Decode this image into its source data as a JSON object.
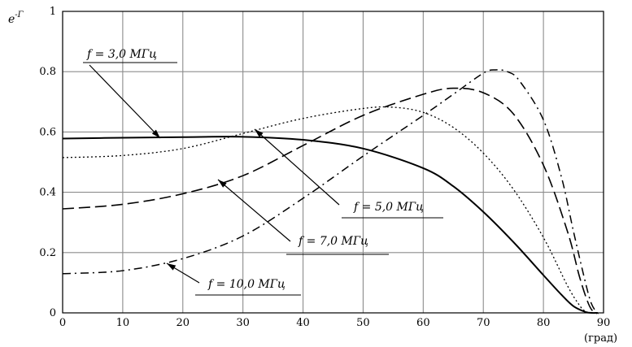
{
  "chart_data": {
    "type": "line",
    "title": "",
    "ylabel_base": "e",
    "ylabel_sup": "-Γ",
    "xlabel": "(град)",
    "xlim": [
      0,
      90
    ],
    "ylim": [
      0,
      1
    ],
    "xticks": [
      0,
      10,
      20,
      30,
      40,
      50,
      60,
      70,
      80,
      90
    ],
    "yticks": [
      0,
      0.2,
      0.4,
      0.6,
      0.8,
      1
    ],
    "grid": true,
    "series": [
      {
        "name": "f = 3,0 МГц",
        "dash": "solid",
        "points": [
          [
            0,
            0.578
          ],
          [
            10,
            0.581
          ],
          [
            20,
            0.583
          ],
          [
            30,
            0.584
          ],
          [
            40,
            0.574
          ],
          [
            50,
            0.545
          ],
          [
            60,
            0.48
          ],
          [
            65,
            0.42
          ],
          [
            70,
            0.335
          ],
          [
            75,
            0.235
          ],
          [
            80,
            0.125
          ],
          [
            83,
            0.06
          ],
          [
            85,
            0.022
          ],
          [
            87,
            0.003
          ],
          [
            88,
            0
          ],
          [
            89,
            0
          ]
        ]
      },
      {
        "name": "f = 5,0 МГц",
        "dash": "dotted",
        "points": [
          [
            0,
            0.515
          ],
          [
            10,
            0.522
          ],
          [
            20,
            0.545
          ],
          [
            30,
            0.595
          ],
          [
            40,
            0.645
          ],
          [
            50,
            0.678
          ],
          [
            55,
            0.682
          ],
          [
            60,
            0.665
          ],
          [
            65,
            0.615
          ],
          [
            70,
            0.53
          ],
          [
            75,
            0.41
          ],
          [
            80,
            0.25
          ],
          [
            84,
            0.09
          ],
          [
            86,
            0.025
          ],
          [
            87,
            0.005
          ],
          [
            88,
            0
          ],
          [
            89,
            0
          ]
        ]
      },
      {
        "name": "f = 7,0 МГц",
        "dash": "dashed",
        "points": [
          [
            0,
            0.345
          ],
          [
            10,
            0.36
          ],
          [
            20,
            0.395
          ],
          [
            30,
            0.455
          ],
          [
            40,
            0.555
          ],
          [
            50,
            0.655
          ],
          [
            60,
            0.725
          ],
          [
            65,
            0.745
          ],
          [
            70,
            0.73
          ],
          [
            75,
            0.66
          ],
          [
            80,
            0.49
          ],
          [
            84,
            0.27
          ],
          [
            86,
            0.12
          ],
          [
            87.5,
            0.03
          ],
          [
            88.5,
            0
          ],
          [
            89,
            0
          ]
        ]
      },
      {
        "name": "f = 10,0 МГц",
        "dash": "dashdot",
        "points": [
          [
            0,
            0.13
          ],
          [
            10,
            0.14
          ],
          [
            20,
            0.18
          ],
          [
            30,
            0.255
          ],
          [
            40,
            0.38
          ],
          [
            50,
            0.52
          ],
          [
            60,
            0.655
          ],
          [
            65,
            0.725
          ],
          [
            70,
            0.795
          ],
          [
            72,
            0.806
          ],
          [
            74,
            0.8
          ],
          [
            76,
            0.77
          ],
          [
            80,
            0.64
          ],
          [
            83,
            0.45
          ],
          [
            85,
            0.27
          ],
          [
            87,
            0.1
          ],
          [
            88,
            0.03
          ],
          [
            89,
            0
          ],
          [
            89.5,
            0
          ]
        ]
      }
    ],
    "annotations": [
      {
        "label": "f = 3,0 МГц"
      },
      {
        "label": "f = 5,0 МГц"
      },
      {
        "label": "f = 7,0 МГц"
      },
      {
        "label": "f = 10,0 МГц"
      }
    ]
  }
}
